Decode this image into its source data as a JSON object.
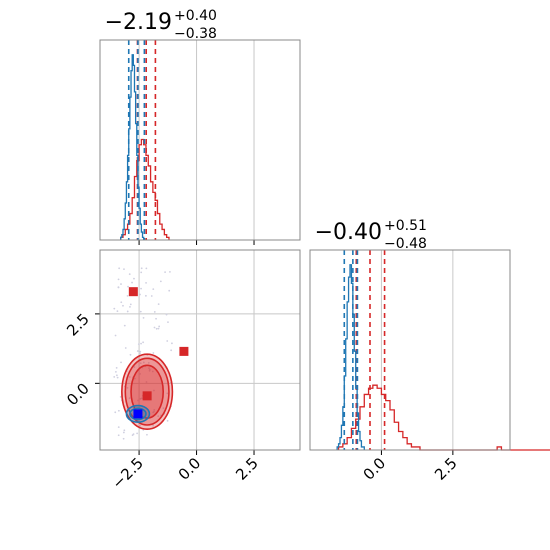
{
  "chart_data": [
    {
      "type": "histogram",
      "panel": "marginal-param-1",
      "title": {
        "value": "−2.19",
        "plus": "+0.40",
        "minus": "−0.38"
      },
      "xlim": [
        -4.2,
        4.5
      ],
      "xticks": [
        -2.5,
        0.0,
        2.5
      ],
      "grid": true,
      "series": [
        {
          "color": "#d62728",
          "bin_start": -3.3,
          "bin_width": 0.1,
          "counts": [
            1,
            2,
            4,
            6,
            10,
            16,
            24,
            30,
            36,
            38,
            36,
            32,
            28,
            22,
            18,
            15,
            10,
            6,
            4,
            2,
            1
          ],
          "quantiles": [
            -2.57,
            -2.19,
            -1.79
          ]
        },
        {
          "color": "#1f77b4",
          "bin_start": -3.3,
          "bin_width": 0.05,
          "counts": [
            1,
            2,
            4,
            8,
            14,
            22,
            32,
            42,
            54,
            64,
            70,
            66,
            56,
            44,
            32,
            20,
            12,
            6,
            3,
            1
          ],
          "quantiles": [
            -2.95,
            -2.55,
            -2.27
          ]
        }
      ]
    },
    {
      "type": "histogram",
      "panel": "marginal-param-2",
      "title": {
        "value": "−0.40",
        "plus": "+0.51",
        "minus": "−0.48"
      },
      "xlim": [
        -2.5,
        4.5
      ],
      "xticks": [
        0.0,
        2.5
      ],
      "grid": true,
      "series": [
        {
          "color": "#d62728",
          "bin_start": -1.5,
          "bin_width": 0.15,
          "counts": [
            1,
            2,
            4,
            7,
            10,
            14,
            18,
            20,
            21,
            20,
            18,
            16,
            13,
            9,
            6,
            4,
            2,
            1,
            1,
            0,
            0,
            0,
            0,
            0,
            0,
            0,
            0,
            0,
            0,
            0,
            0,
            0,
            0,
            0,
            0,
            0,
            0,
            1,
            0,
            0,
            0,
            0,
            0,
            0,
            0,
            0,
            0,
            0,
            0,
            0,
            1
          ],
          "quantiles": [
            -0.88,
            -0.4,
            0.11
          ]
        },
        {
          "color": "#1f77b4",
          "bin_start": -1.55,
          "bin_width": 0.05,
          "counts": [
            1,
            2,
            4,
            8,
            14,
            24,
            36,
            48,
            56,
            60,
            54,
            44,
            32,
            20,
            12,
            6,
            3,
            1,
            1
          ],
          "quantiles": [
            -1.3,
            -1.0,
            -0.84
          ]
        }
      ]
    },
    {
      "type": "scatter",
      "panel": "joint",
      "xlim": [
        -4.2,
        4.5
      ],
      "ylim": [
        -2.4,
        4.8
      ],
      "xticks": [
        -2.5,
        0.0,
        2.5
      ],
      "yticks": [
        2.5,
        0.0
      ],
      "grid": true,
      "series": [
        {
          "name": "",
          "color": "#d62728",
          "marker": "square",
          "points": [
            [
              -2.75,
              3.3
            ],
            [
              -0.55,
              1.15
            ],
            [
              -2.15,
              -0.45
            ]
          ]
        },
        {
          "name": "",
          "color": "#0000ff",
          "marker": "square",
          "points": [
            [
              -2.55,
              -1.1
            ]
          ]
        }
      ],
      "contours": [
        {
          "color": "#d62728",
          "cx": -2.15,
          "cy": -0.3,
          "rx_levels": [
            0.7,
            0.95,
            1.1
          ],
          "ry_levels": [
            0.95,
            1.2,
            1.35
          ]
        },
        {
          "color": "#1f77b4",
          "cx": -2.55,
          "cy": -1.1,
          "rx_levels": [
            0.35,
            0.5
          ],
          "ry_levels": [
            0.2,
            0.3
          ]
        }
      ]
    }
  ]
}
